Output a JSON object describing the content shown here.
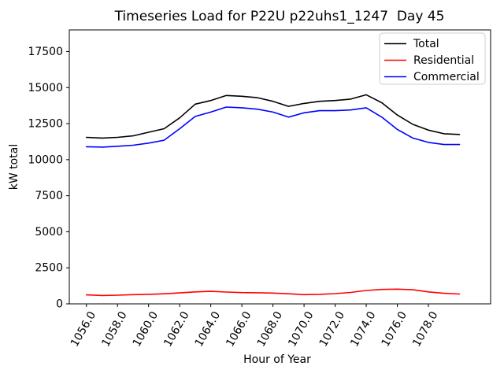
{
  "figure": {
    "background": "#ffffff"
  },
  "chart_data": {
    "type": "line",
    "title": "Timeseries Load for P22U p22uhs1_1247  Day 45",
    "xlabel": "Hour of Year",
    "ylabel": "kW total",
    "grid": false,
    "legend_position": "upper right",
    "xlim": [
      1054.9,
      1082.0
    ],
    "ylim": [
      0,
      19000
    ],
    "xticks": [
      1056,
      1058,
      1060,
      1062,
      1064,
      1066,
      1068,
      1070,
      1072,
      1074,
      1076,
      1078
    ],
    "xtick_labels": [
      "1056.0",
      "1058.0",
      "1060.0",
      "1062.0",
      "1064.0",
      "1066.0",
      "1068.0",
      "1070.0",
      "1072.0",
      "1074.0",
      "1076.0",
      "1078.0"
    ],
    "xtick_rotation_deg": 60,
    "yticks": [
      0,
      2500,
      5000,
      7500,
      10000,
      12500,
      15000,
      17500
    ],
    "ytick_labels": [
      "0",
      "2500",
      "5000",
      "7500",
      "10000",
      "12500",
      "15000",
      "17500"
    ],
    "x": [
      1056,
      1057,
      1058,
      1059,
      1060,
      1061,
      1062,
      1063,
      1064,
      1065,
      1066,
      1067,
      1068,
      1069,
      1070,
      1071,
      1072,
      1073,
      1074,
      1075,
      1076,
      1077,
      1078,
      1079,
      1080
    ],
    "series": [
      {
        "name": "Total",
        "color": "#000000",
        "values": [
          11550,
          11500,
          11550,
          11650,
          11900,
          12150,
          12900,
          13850,
          14100,
          14450,
          14400,
          14300,
          14050,
          13700,
          13900,
          14050,
          14100,
          14200,
          14500,
          13950,
          13100,
          12450,
          12050,
          11800,
          11750
        ]
      },
      {
        "name": "Residential",
        "color": "#ff0000",
        "values": [
          620,
          580,
          600,
          640,
          660,
          700,
          760,
          830,
          870,
          820,
          780,
          770,
          750,
          700,
          640,
          660,
          710,
          790,
          930,
          1000,
          1020,
          980,
          830,
          730,
          680
        ]
      },
      {
        "name": "Commercial",
        "color": "#0000ff",
        "values": [
          10900,
          10870,
          10930,
          11000,
          11150,
          11350,
          12150,
          13000,
          13300,
          13650,
          13600,
          13500,
          13300,
          12950,
          13250,
          13400,
          13400,
          13450,
          13600,
          12950,
          12100,
          11500,
          11200,
          11050,
          11050
        ]
      }
    ]
  }
}
